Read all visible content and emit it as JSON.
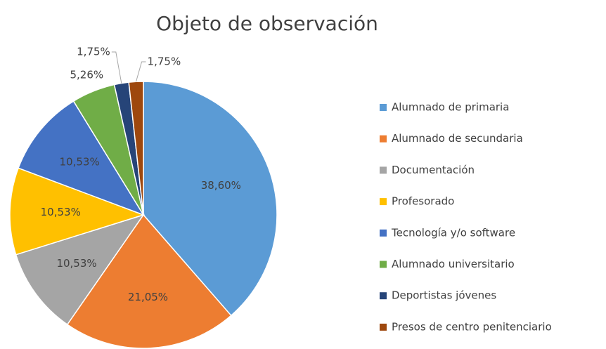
{
  "chart_data": {
    "type": "pie",
    "title": "Objeto de observación",
    "categories": [
      "Alumnado de primaria",
      "Alumnado de secundaria",
      "Documentación",
      "Profesorado",
      "Tecnología y/o software",
      "Alumnado universitario",
      "Deportistas jóvenes",
      "Presos de centro penitenciario"
    ],
    "values": [
      38.6,
      21.05,
      10.53,
      10.53,
      10.53,
      5.26,
      1.75,
      1.75
    ],
    "value_labels": [
      "38,60%",
      "21,05%",
      "10,53%",
      "10,53%",
      "10,53%",
      "5,26%",
      "1,75%",
      "1,75%"
    ],
    "colors": [
      "#5b9bd5",
      "#ed7d31",
      "#a5a5a5",
      "#ffc000",
      "#4472c4",
      "#70ad47",
      "#264478",
      "#9e480e"
    ],
    "legend": "right"
  }
}
